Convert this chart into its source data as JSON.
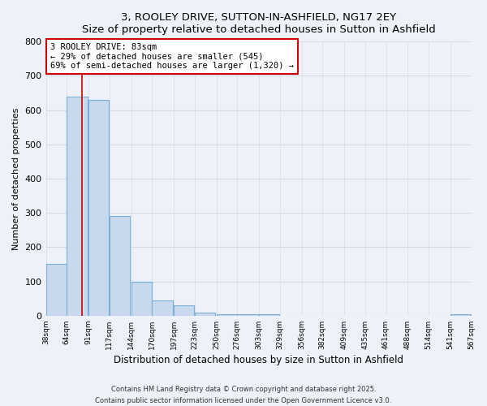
{
  "title": "3, ROOLEY DRIVE, SUTTON-IN-ASHFIELD, NG17 2EY",
  "subtitle": "Size of property relative to detached houses in Sutton in Ashfield",
  "xlabel": "Distribution of detached houses by size in Sutton in Ashfield",
  "ylabel": "Number of detached properties",
  "bin_edges": [
    38,
    64,
    91,
    117,
    144,
    170,
    197,
    223,
    250,
    276,
    303,
    329,
    356,
    382,
    409,
    435,
    461,
    488,
    514,
    541,
    567
  ],
  "bar_heights": [
    150,
    640,
    630,
    290,
    100,
    45,
    30,
    10,
    5,
    5,
    5,
    0,
    0,
    0,
    0,
    0,
    0,
    0,
    0,
    5
  ],
  "bar_color": "#c8d9ee",
  "bar_edgecolor": "#7aaed6",
  "property_line_x": 83,
  "property_line_color": "#cc0000",
  "annotation_title": "3 ROOLEY DRIVE: 83sqm",
  "annotation_line1": "← 29% of detached houses are smaller (545)",
  "annotation_line2": "69% of semi-detached houses are larger (1,320) →",
  "annotation_box_edgecolor": "#cc0000",
  "ylim": [
    0,
    800
  ],
  "yticks": [
    0,
    100,
    200,
    300,
    400,
    500,
    600,
    700,
    800
  ],
  "tick_labels": [
    "38sqm",
    "64sqm",
    "91sqm",
    "117sqm",
    "144sqm",
    "170sqm",
    "197sqm",
    "223sqm",
    "250sqm",
    "276sqm",
    "303sqm",
    "329sqm",
    "356sqm",
    "382sqm",
    "409sqm",
    "435sqm",
    "461sqm",
    "488sqm",
    "514sqm",
    "541sqm",
    "567sqm"
  ],
  "footer1": "Contains HM Land Registry data © Crown copyright and database right 2025.",
  "footer2": "Contains public sector information licensed under the Open Government Licence v3.0.",
  "bg_color": "#eef2f8",
  "grid_color": "#d0dcea"
}
